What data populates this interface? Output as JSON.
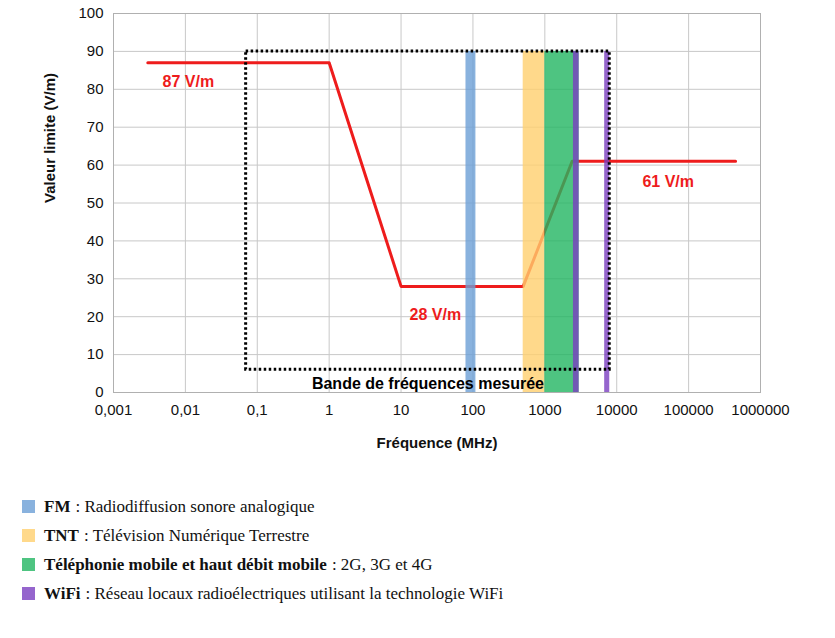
{
  "chart_data": {
    "type": "line",
    "x_label": "Fréquence (MHz)",
    "y_label": "Valeur limite (V/m)",
    "x": [
      0.003,
      1,
      10,
      500,
      2400,
      450000
    ],
    "values": [
      87,
      87,
      28,
      28,
      61,
      61
    ],
    "color": "#ee1c1c",
    "log": "x",
    "grid": true,
    "xlim": [
      0.001,
      1000000
    ],
    "ylim": [
      0,
      100
    ],
    "xticks": [
      {
        "value": 0.001,
        "label": "0,001"
      },
      {
        "value": 0.01,
        "label": "0,01"
      },
      {
        "value": 0.1,
        "label": "0,1"
      },
      1,
      10,
      100,
      1000,
      10000,
      100000,
      1000000
    ],
    "yticks": [
      0,
      10,
      20,
      30,
      40,
      50,
      60,
      70,
      80,
      90,
      100
    ],
    "annotations": [
      {
        "text": "87 V/m",
        "x": 0.011,
        "y": 82
      },
      {
        "text": "28 V/m",
        "x": 30,
        "y": 20.5
      },
      {
        "text": "61 V/m",
        "x": 52000,
        "y": 55.5
      }
    ],
    "measured_band": {
      "label": "Bande de fréquences mesurée",
      "x": [
        0.07,
        8000
      ],
      "y": [
        6,
        90
      ]
    },
    "bands": [
      {
        "name": "FM",
        "text": ": Radiodiffusion sonore analogique",
        "color": "#6b9fd6",
        "x": [
          80,
          110
        ],
        "y": [
          0,
          90
        ]
      },
      {
        "name": "TNT",
        "text": ": Télévision Numérique Terrestre",
        "color": "#ffcf6e",
        "x": [
          500,
          1000
        ],
        "y": [
          0,
          90
        ]
      },
      {
        "name": "Téléphonie mobile et haut débit mobile",
        "text": ": 2G, 3G et 4G",
        "color": "#22b562",
        "x": [
          1000,
          3000
        ],
        "y": [
          0,
          90
        ]
      },
      {
        "name": "WiFi",
        "text": ": Réseau locaux radioélectriques utilisant la technologie WiFi",
        "color": "#7b3fc0",
        "x": [
          2500,
          3000
        ],
        "y": [
          0,
          90
        ]
      },
      {
        "name": "WiFi",
        "text": ": Réseau locaux radioélectriques utilisant la technologie WiFi",
        "color": "#7b3fc0",
        "x": [
          6800,
          8000
        ],
        "y": [
          0,
          90
        ]
      }
    ]
  }
}
